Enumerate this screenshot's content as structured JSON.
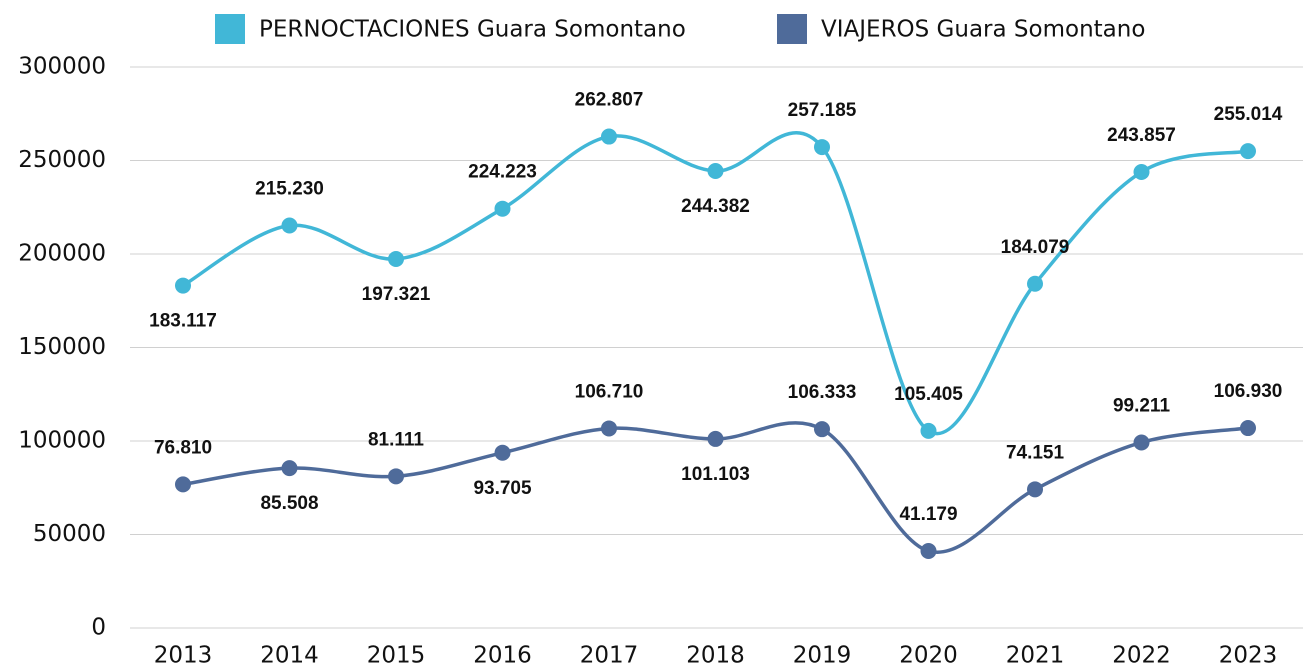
{
  "chart_data": {
    "type": "line",
    "categories": [
      "2013",
      "2014",
      "2015",
      "2016",
      "2017",
      "2018",
      "2019",
      "2020",
      "2021",
      "2022",
      "2023"
    ],
    "series": [
      {
        "name": "PERNOCTACIONES Guara Somontano",
        "color": "#41b7d7",
        "values": [
          183117,
          215230,
          197321,
          224223,
          262807,
          244382,
          257185,
          105405,
          184079,
          243857,
          255014
        ],
        "value_labels": [
          "183.117",
          "215.230",
          "197.321",
          "224.223",
          "262.807",
          "244.382",
          "257.185",
          "105.405",
          "184.079",
          "243.857",
          "255.014"
        ]
      },
      {
        "name": "VIAJEROS Guara Somontano",
        "color": "#4f6b9a",
        "values": [
          76810,
          85508,
          81111,
          93705,
          106710,
          101103,
          106333,
          41179,
          74151,
          99211,
          106930
        ],
        "value_labels": [
          "76.810",
          "85.508",
          "81.111",
          "93.705",
          "106.710",
          "101.103",
          "106.333",
          "41.179",
          "74.151",
          "99.211",
          "106.930"
        ]
      }
    ],
    "ylim": [
      0,
      300000
    ],
    "yticks": [
      0,
      50000,
      100000,
      150000,
      200000,
      250000,
      300000
    ],
    "grid": true,
    "legend": "top"
  }
}
